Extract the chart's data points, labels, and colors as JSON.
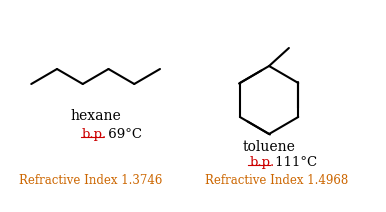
{
  "background_color": "#ffffff",
  "hexane_name": "hexane",
  "toluene_name": "toluene",
  "hexane_bp_label": "b.p.",
  "hexane_bp_value": " 69°C",
  "toluene_bp_label": "b.p.",
  "toluene_bp_value": " 111°C",
  "hexane_ri_text": "Refractive Index 1.3746",
  "toluene_ri_text": "Refractive Index 1.4968",
  "bp_label_color": "#cc0000",
  "bp_value_color": "#000000",
  "ri_color": "#cc6600",
  "name_color": "#000000",
  "line_color": "#000000",
  "figsize": [
    3.86,
    2.12
  ],
  "dpi": 100
}
